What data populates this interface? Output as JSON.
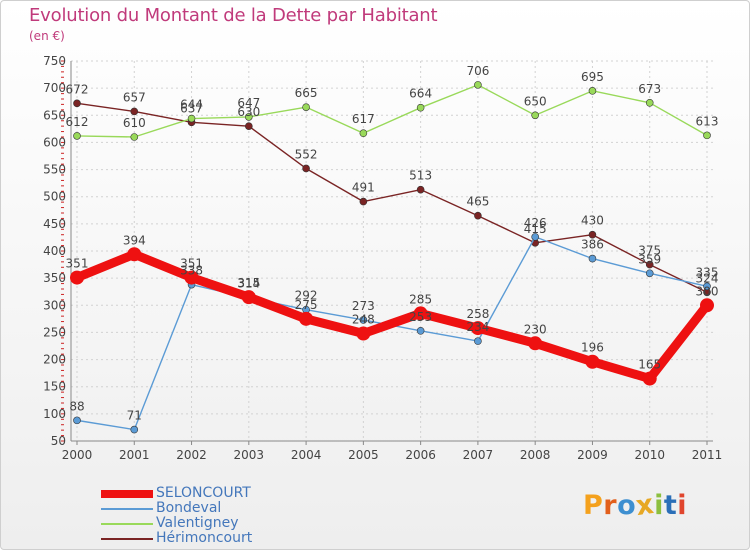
{
  "title": "Evolution du Montant de la Dette par Habitant",
  "subtitle": "(en €)",
  "logo": {
    "letters": [
      "P",
      "r",
      "o",
      "x",
      "i",
      "t",
      "i"
    ],
    "colors": [
      "#f4a11d",
      "#e25f1b",
      "#3e8fd0",
      "#e7a824",
      "#8cbf3f",
      "#2b6fb8",
      "#e0452d"
    ]
  },
  "chart_data": {
    "type": "line",
    "categories": [
      "2000",
      "2001",
      "2002",
      "2003",
      "2004",
      "2005",
      "2006",
      "2007",
      "2008",
      "2009",
      "2010",
      "2011"
    ],
    "ylim": [
      50,
      750
    ],
    "yticks": [
      50,
      100,
      150,
      200,
      250,
      300,
      350,
      400,
      450,
      500,
      550,
      600,
      650,
      700,
      750
    ],
    "grid": true,
    "legend_position": "bottom-left",
    "series": [
      {
        "name": "SELONCOURT",
        "color": "#ee1111",
        "values": [
          351,
          394,
          351,
          315,
          275,
          248,
          285,
          258,
          230,
          196,
          165,
          300
        ],
        "labels": [
          "351",
          "394",
          "351",
          "315",
          "275",
          "248",
          "285",
          "258",
          "230",
          "196",
          "165",
          "300"
        ]
      },
      {
        "name": "Bondeval",
        "color": "#5b9bd5",
        "values": [
          88,
          71,
          338,
          314,
          292,
          273,
          253,
          234,
          426,
          386,
          359,
          335
        ],
        "labels": [
          "88",
          "71",
          "338",
          "314",
          "292",
          "273",
          "253",
          "234",
          "426",
          "386",
          "359",
          "335"
        ]
      },
      {
        "name": "Valentigney",
        "color": "#99d95a",
        "values": [
          612,
          610,
          644,
          647,
          665,
          617,
          664,
          706,
          650,
          695,
          673,
          613
        ],
        "labels": [
          "612",
          "610",
          "644",
          "647",
          "665",
          "617",
          "664",
          "706",
          "650",
          "695",
          "673",
          "613"
        ]
      },
      {
        "name": "Hérimoncourt",
        "color": "#7a2424",
        "values": [
          672,
          657,
          637,
          630,
          552,
          491,
          513,
          465,
          415,
          430,
          375,
          324
        ],
        "labels": [
          "672",
          "657",
          "637",
          "630",
          "552",
          "491",
          "513",
          "465",
          "415",
          "430",
          "375",
          "324"
        ]
      }
    ]
  }
}
